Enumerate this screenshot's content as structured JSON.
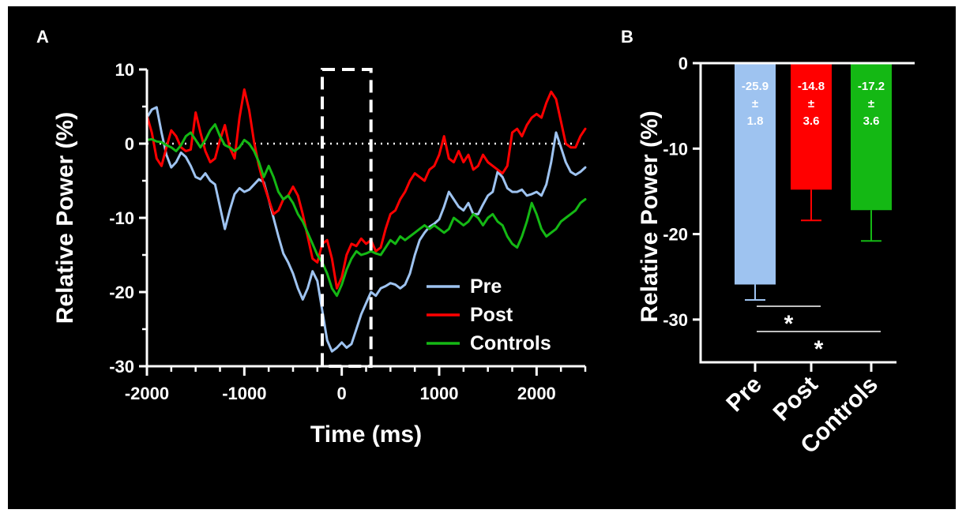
{
  "panel_a_label": "A",
  "panel_b_label": "B",
  "colors": {
    "pre": "#9ec3f0",
    "post": "#ff0000",
    "controls": "#14b814",
    "axis": "#ffffff",
    "background": "#000000"
  },
  "chart_data": [
    {
      "type": "line",
      "xlabel": "Time (ms)",
      "ylabel": "Relative Power (%)",
      "xlim": [
        -2000,
        2500
      ],
      "ylim": [
        -30,
        10
      ],
      "xticks": [
        "-2000",
        "-1000",
        "0",
        "1000",
        "2000"
      ],
      "yticks": [
        "10",
        "0",
        "-10",
        "-20",
        "-30"
      ],
      "reference_line": {
        "y": 0,
        "style": "dotted"
      },
      "highlight_window": [
        -200,
        300
      ],
      "legend_position": "lower-right",
      "series": [
        {
          "name": "Pre",
          "x": [
            -2000,
            -1950,
            -1900,
            -1850,
            -1800,
            -1750,
            -1700,
            -1650,
            -1600,
            -1550,
            -1500,
            -1450,
            -1400,
            -1350,
            -1300,
            -1250,
            -1200,
            -1150,
            -1100,
            -1050,
            -1000,
            -950,
            -900,
            -850,
            -800,
            -750,
            -700,
            -650,
            -600,
            -550,
            -500,
            -450,
            -400,
            -350,
            -300,
            -250,
            -200,
            -150,
            -100,
            -50,
            0,
            50,
            100,
            150,
            200,
            250,
            300,
            350,
            400,
            450,
            500,
            550,
            600,
            650,
            700,
            750,
            800,
            850,
            900,
            950,
            1000,
            1050,
            1100,
            1150,
            1200,
            1250,
            1300,
            1350,
            1400,
            1450,
            1500,
            1550,
            1600,
            1650,
            1700,
            1750,
            1800,
            1850,
            1900,
            1950,
            2000,
            2050,
            2100,
            2150,
            2200,
            2250,
            2300,
            2350,
            2400,
            2450,
            2500
          ],
          "y": [
            3.5,
            4.6,
            4.9,
            1.5,
            -1.5,
            -3.2,
            -2.5,
            -1.2,
            -1.8,
            -3.0,
            -4.5,
            -4.8,
            -4.0,
            -5.0,
            -5.5,
            -8.5,
            -11.5,
            -9.0,
            -6.8,
            -6.0,
            -6.5,
            -6.2,
            -5.5,
            -4.8,
            -5.2,
            -7.5,
            -10.0,
            -12.5,
            -14.8,
            -16.0,
            -17.5,
            -19.5,
            -21.0,
            -19.5,
            -17.2,
            -18.5,
            -22.5,
            -26.5,
            -28.0,
            -27.5,
            -26.8,
            -27.5,
            -27.0,
            -25.0,
            -23.0,
            -21.5,
            -20.0,
            -20.5,
            -19.5,
            -19.2,
            -18.8,
            -19.0,
            -19.5,
            -19.0,
            -17.5,
            -15.0,
            -13.0,
            -12.0,
            -11.2,
            -10.8,
            -10.2,
            -8.5,
            -6.5,
            -7.5,
            -8.5,
            -9.0,
            -8.0,
            -9.5,
            -9.5,
            -8.2,
            -7.0,
            -6.5,
            -3.8,
            -4.5,
            -6.0,
            -6.5,
            -6.5,
            -6.2,
            -7.0,
            -6.8,
            -6.5,
            -7.0,
            -5.5,
            -2.5,
            1.5,
            -0.5,
            -2.5,
            -3.8,
            -4.2,
            -3.8,
            -3.2
          ]
        },
        {
          "name": "Post",
          "x": [
            -2000,
            -1950,
            -1900,
            -1850,
            -1800,
            -1750,
            -1700,
            -1650,
            -1600,
            -1550,
            -1500,
            -1450,
            -1400,
            -1350,
            -1300,
            -1250,
            -1200,
            -1150,
            -1100,
            -1050,
            -1000,
            -950,
            -900,
            -850,
            -800,
            -750,
            -700,
            -650,
            -600,
            -550,
            -500,
            -450,
            -400,
            -350,
            -300,
            -250,
            -200,
            -150,
            -100,
            -50,
            0,
            50,
            100,
            150,
            200,
            250,
            300,
            350,
            400,
            450,
            500,
            550,
            600,
            650,
            700,
            750,
            800,
            850,
            900,
            950,
            1000,
            1050,
            1100,
            1150,
            1200,
            1250,
            1300,
            1350,
            1400,
            1450,
            1500,
            1550,
            1600,
            1650,
            1700,
            1750,
            1800,
            1850,
            1900,
            1950,
            2000,
            2050,
            2100,
            2150,
            2200,
            2250,
            2300,
            2350,
            2400,
            2450,
            2500
          ],
          "y": [
            3.8,
            1.5,
            -2.0,
            -3.0,
            -0.5,
            1.8,
            1.0,
            -0.5,
            -1.0,
            -0.8,
            4.2,
            1.5,
            -1.0,
            -2.5,
            -2.0,
            0.5,
            2.5,
            -0.5,
            -2.0,
            3.5,
            7.3,
            4.5,
            0.2,
            -3.0,
            -5.5,
            -7.5,
            -9.5,
            -9.0,
            -7.5,
            -7.0,
            -5.8,
            -7.0,
            -9.5,
            -12.5,
            -15.5,
            -16.0,
            -13.5,
            -13.0,
            -15.5,
            -19.5,
            -18.0,
            -15.0,
            -13.5,
            -13.8,
            -12.8,
            -13.5,
            -13.0,
            -14.5,
            -14.0,
            -11.5,
            -9.5,
            -9.0,
            -7.5,
            -6.5,
            -5.0,
            -4.0,
            -4.5,
            -5.0,
            -3.5,
            -3.0,
            -1.5,
            1.0,
            -2.0,
            -2.5,
            -1.0,
            -2.5,
            -1.5,
            -3.5,
            -3.0,
            -1.5,
            -2.5,
            -3.0,
            -3.5,
            -4.0,
            -3.0,
            1.5,
            2.0,
            1.0,
            2.5,
            3.5,
            4.0,
            3.5,
            5.5,
            7.0,
            6.0,
            3.0,
            0.0,
            -0.5,
            -0.5,
            1.0,
            2.0
          ]
        },
        {
          "name": "Controls",
          "x": [
            -2000,
            -1950,
            -1900,
            -1850,
            -1800,
            -1750,
            -1700,
            -1650,
            -1600,
            -1550,
            -1500,
            -1450,
            -1400,
            -1350,
            -1300,
            -1250,
            -1200,
            -1150,
            -1100,
            -1050,
            -1000,
            -950,
            -900,
            -850,
            -800,
            -750,
            -700,
            -650,
            -600,
            -550,
            -500,
            -450,
            -400,
            -350,
            -300,
            -250,
            -200,
            -150,
            -100,
            -50,
            0,
            50,
            100,
            150,
            200,
            250,
            300,
            350,
            400,
            450,
            500,
            550,
            600,
            650,
            700,
            750,
            800,
            850,
            900,
            950,
            1000,
            1050,
            1100,
            1150,
            1200,
            1250,
            1300,
            1350,
            1400,
            1450,
            1500,
            1550,
            1600,
            1650,
            1700,
            1750,
            1800,
            1850,
            1900,
            1950,
            2000,
            2050,
            2100,
            2150,
            2200,
            2250,
            2300,
            2350,
            2400,
            2450,
            2500
          ],
          "y": [
            0.5,
            0.6,
            0.3,
            0.2,
            -0.2,
            -0.5,
            -1.0,
            -0.2,
            1.0,
            1.5,
            0.5,
            -0.5,
            0.5,
            1.8,
            2.6,
            1.0,
            -0.2,
            -0.5,
            -1.0,
            -0.5,
            0.5,
            0.0,
            -1.0,
            -2.5,
            -4.5,
            -3.0,
            -4.5,
            -6.5,
            -7.5,
            -7.0,
            -8.0,
            -9.5,
            -10.5,
            -12.0,
            -13.5,
            -15.0,
            -16.0,
            -17.5,
            -19.5,
            -20.5,
            -19.0,
            -17.0,
            -15.5,
            -14.5,
            -15.0,
            -14.8,
            -14.5,
            -14.8,
            -15.0,
            -14.0,
            -13.0,
            -13.5,
            -12.5,
            -13.0,
            -12.5,
            -12.0,
            -11.5,
            -11.0,
            -11.5,
            -11.0,
            -11.5,
            -12.0,
            -11.5,
            -10.0,
            -10.5,
            -11.0,
            -10.5,
            -9.5,
            -10.0,
            -11.0,
            -10.0,
            -9.5,
            -10.5,
            -11.0,
            -12.5,
            -13.5,
            -14.0,
            -12.5,
            -10.5,
            -8.0,
            -9.5,
            -11.5,
            -12.5,
            -12.0,
            -11.5,
            -10.5,
            -10.0,
            -9.5,
            -9.0,
            -8.0,
            -7.5
          ]
        }
      ]
    },
    {
      "type": "bar",
      "ylabel": "Relative Power (%)",
      "ylim": [
        -35,
        0
      ],
      "yticks": [
        "0",
        "-10",
        "-20",
        "-30"
      ],
      "categories": [
        "Pre",
        "Post",
        "Controls"
      ],
      "values": [
        -25.9,
        -14.8,
        -17.2
      ],
      "errors": [
        1.8,
        3.6,
        3.6
      ],
      "bar_labels": [
        {
          "mean": "-25.9",
          "pm": "±",
          "sem": "1.8"
        },
        {
          "mean": "-14.8",
          "pm": "±",
          "sem": "3.6"
        },
        {
          "mean": "-17.2",
          "pm": "±",
          "sem": "3.6"
        }
      ],
      "significance": [
        {
          "from": "Pre",
          "to": "Post",
          "label": "*"
        },
        {
          "from": "Pre",
          "to": "Controls",
          "label": "*"
        }
      ]
    }
  ]
}
